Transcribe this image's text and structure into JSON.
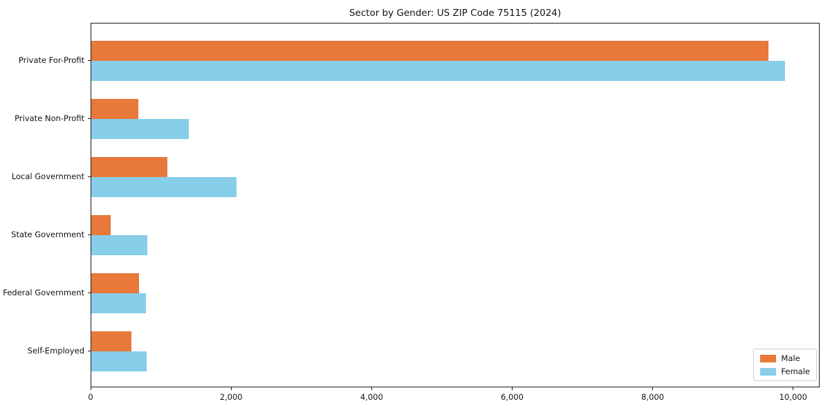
{
  "title": "Sector by Gender: US ZIP Code 75115 (2024)",
  "chart_data": {
    "type": "bar",
    "orientation": "horizontal",
    "title": "Sector by Gender: US ZIP Code 75115 (2024)",
    "categories": [
      "Private For-Profit",
      "Private Non-Profit",
      "Local Government",
      "State Government",
      "Federal Government",
      "Self-Employed"
    ],
    "series": [
      {
        "name": "Male",
        "color": "#E8793B",
        "values": [
          9650,
          680,
          1090,
          290,
          690,
          580
        ]
      },
      {
        "name": "Female",
        "color": "#87CEEB",
        "values": [
          9880,
          1400,
          2080,
          810,
          790,
          800
        ]
      }
    ],
    "xlabel": "",
    "ylabel": "",
    "xlim": [
      0,
      10376
    ],
    "x_tick_values": [
      0,
      2000,
      4000,
      6000,
      8000,
      10000
    ],
    "x_tick_labels": [
      "0",
      "2,000",
      "4,000",
      "6,000",
      "8,000",
      "10,000"
    ],
    "grid": false,
    "legend": {
      "position": "lower right",
      "entries": [
        "Male",
        "Female"
      ]
    },
    "colors": {
      "axis": "#1a1a1a",
      "text": "#111111",
      "legend_border": "#cccccc",
      "background": "#ffffff"
    }
  }
}
